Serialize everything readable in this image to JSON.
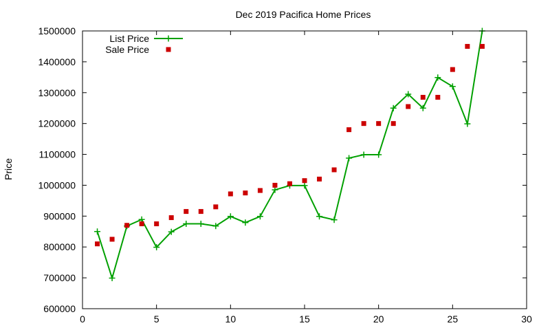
{
  "chart_data": {
    "type": "line",
    "title": "Dec 2019 Pacifica Home Prices",
    "xlabel": "",
    "ylabel": "Price",
    "xlim": [
      0,
      30
    ],
    "ylim": [
      600000,
      1500000
    ],
    "xticks": [
      0,
      5,
      10,
      15,
      20,
      25,
      30
    ],
    "yticks": [
      600000,
      700000,
      800000,
      900000,
      1000000,
      1100000,
      1200000,
      1300000,
      1400000,
      1500000
    ],
    "xtick_labels": [
      "0",
      "5",
      "10",
      "15",
      "20",
      "25",
      "30"
    ],
    "ytick_labels": [
      "600000",
      "700000",
      "800000",
      "900000",
      "1000000",
      "1100000",
      "1200000",
      "1300000",
      "1400000",
      "1500000"
    ],
    "grid": false,
    "legend": "top-left",
    "x": [
      1,
      2,
      3,
      4,
      5,
      6,
      7,
      8,
      9,
      10,
      11,
      12,
      13,
      14,
      15,
      16,
      17,
      18,
      19,
      20,
      21,
      22,
      23,
      24,
      25,
      26,
      27
    ],
    "series": [
      {
        "name": "List Price",
        "style": "lines-points",
        "marker": "plus",
        "color": "#00a000",
        "values": [
          850000,
          699000,
          868000,
          889000,
          799000,
          849000,
          875000,
          875000,
          868000,
          899000,
          879000,
          899000,
          985000,
          999000,
          999000,
          899000,
          888000,
          1088000,
          1099000,
          1099000,
          1250000,
          1295000,
          1250000,
          1349000,
          1320000,
          1199000,
          1500000
        ]
      },
      {
        "name": "Sale Price",
        "style": "points",
        "marker": "square",
        "color": "#cc0000",
        "values": [
          810000,
          825000,
          870000,
          875000,
          875000,
          895000,
          915000,
          915000,
          930000,
          972000,
          975000,
          983000,
          1000000,
          1005000,
          1015000,
          1020000,
          1050000,
          1180000,
          1200000,
          1200000,
          1200000,
          1255000,
          1285000,
          1285000,
          1375000,
          1450000,
          1450000
        ]
      }
    ]
  }
}
